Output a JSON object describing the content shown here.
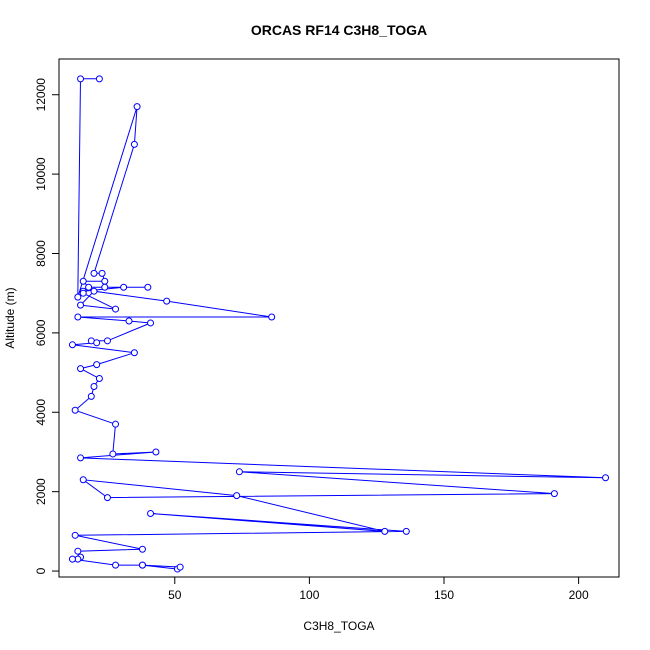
{
  "chart_data": {
    "type": "line",
    "title": "ORCAS RF14 C3H8_TOGA",
    "xlabel": "C3H8_TOGA",
    "ylabel": "Altitude (m)",
    "xlim": [
      7,
      215
    ],
    "ylim": [
      -150,
      12900
    ],
    "xticks": [
      50,
      100,
      150,
      200
    ],
    "yticks": [
      0,
      2000,
      4000,
      6000,
      8000,
      10000,
      12000
    ],
    "grid": false,
    "legend": "none",
    "line_color": "#0000ff",
    "marker": "open-circle",
    "points": [
      [
        22,
        12400
      ],
      [
        15,
        12400
      ],
      [
        14,
        6900
      ],
      [
        36,
        11700
      ],
      [
        35,
        10750
      ],
      [
        20,
        7500
      ],
      [
        23,
        7500
      ],
      [
        24,
        7300
      ],
      [
        16,
        7300
      ],
      [
        18,
        7150
      ],
      [
        40,
        7150
      ],
      [
        24,
        7150
      ],
      [
        31,
        7150
      ],
      [
        16,
        7050
      ],
      [
        16,
        7000
      ],
      [
        28,
        6600
      ],
      [
        15,
        6700
      ],
      [
        20,
        7050
      ],
      [
        47,
        6800
      ],
      [
        86,
        6400
      ],
      [
        14,
        6400
      ],
      [
        33,
        6300
      ],
      [
        41,
        6250
      ],
      [
        25,
        5800
      ],
      [
        19,
        5800
      ],
      [
        21,
        5750
      ],
      [
        12,
        5700
      ],
      [
        35,
        5500
      ],
      [
        21,
        5200
      ],
      [
        15,
        5100
      ],
      [
        22,
        4850
      ],
      [
        20,
        4650
      ],
      [
        19,
        4400
      ],
      [
        13,
        4050
      ],
      [
        28,
        3700
      ],
      [
        27,
        2950
      ],
      [
        43,
        3000
      ],
      [
        15,
        2850
      ],
      [
        210,
        2350
      ],
      [
        74,
        2500
      ],
      [
        191,
        1950
      ],
      [
        25,
        1850
      ],
      [
        16,
        2300
      ],
      [
        73,
        1900
      ],
      [
        128,
        1000
      ],
      [
        41,
        1450
      ],
      [
        136,
        1000
      ],
      [
        13,
        900
      ],
      [
        38,
        550
      ],
      [
        14,
        500
      ],
      [
        15,
        350
      ],
      [
        14,
        300
      ],
      [
        12,
        300
      ],
      [
        28,
        150
      ],
      [
        38,
        150
      ],
      [
        51,
        50
      ],
      [
        52,
        100
      ],
      [
        38,
        150
      ]
    ]
  }
}
